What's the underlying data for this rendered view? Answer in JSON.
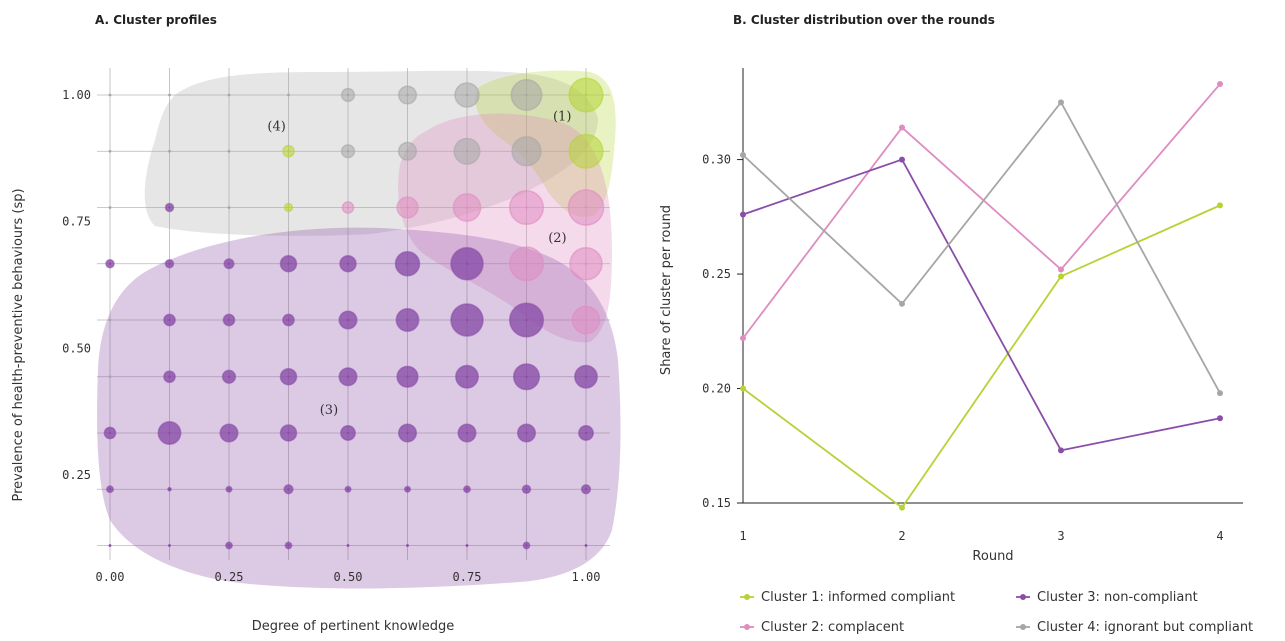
{
  "chart_data": [
    {
      "type": "scatter",
      "title": "A. Cluster profiles",
      "xlabel": "Degree of pertinent knowledge",
      "ylabel": "Prevalence of health-preventive behaviours (sp)",
      "xlim": [
        0,
        1
      ],
      "ylim": [
        0.11,
        1.0
      ],
      "x_ticks": [
        "0.00",
        "0.25",
        "0.50",
        "0.75",
        "1.00"
      ],
      "y_ticks": [
        "0.25",
        "0.50",
        "0.75",
        "1.00"
      ],
      "grid": true,
      "x_grid": [
        0.0,
        0.125,
        0.25,
        0.375,
        0.5,
        0.625,
        0.75,
        0.875,
        1.0
      ],
      "y_grid": [
        0.111,
        0.222,
        0.333,
        0.444,
        0.556,
        0.667,
        0.778,
        0.889,
        1.0
      ],
      "region_labels": [
        {
          "text": "(1)",
          "cluster": 1,
          "x": 0.95,
          "y": 0.96
        },
        {
          "text": "(2)",
          "cluster": 2,
          "x": 0.94,
          "y": 0.72
        },
        {
          "text": "(3)",
          "cluster": 3,
          "x": 0.46,
          "y": 0.38
        },
        {
          "text": "(4)",
          "cluster": 4,
          "x": 0.35,
          "y": 0.94
        }
      ],
      "points": [
        {
          "x": 0.0,
          "y": 1.0,
          "c": 4,
          "s": 0.3
        },
        {
          "x": 0.125,
          "y": 1.0,
          "c": 4,
          "s": 0.3
        },
        {
          "x": 0.25,
          "y": 1.0,
          "c": 4,
          "s": 0.3
        },
        {
          "x": 0.375,
          "y": 1.0,
          "c": 4,
          "s": 0.3
        },
        {
          "x": 0.5,
          "y": 1.0,
          "c": 4,
          "s": 1.6
        },
        {
          "x": 0.625,
          "y": 1.0,
          "c": 4,
          "s": 2.2
        },
        {
          "x": 0.75,
          "y": 1.0,
          "c": 4,
          "s": 3.0
        },
        {
          "x": 0.875,
          "y": 1.0,
          "c": 4,
          "s": 3.8
        },
        {
          "x": 1.0,
          "y": 1.0,
          "c": 1,
          "s": 4.2
        },
        {
          "x": 0.0,
          "y": 0.889,
          "c": 4,
          "s": 0.3
        },
        {
          "x": 0.125,
          "y": 0.889,
          "c": 4,
          "s": 0.3
        },
        {
          "x": 0.25,
          "y": 0.889,
          "c": 4,
          "s": 0.3
        },
        {
          "x": 0.375,
          "y": 0.889,
          "c": 1,
          "s": 1.4
        },
        {
          "x": 0.5,
          "y": 0.889,
          "c": 4,
          "s": 1.6
        },
        {
          "x": 0.625,
          "y": 0.889,
          "c": 4,
          "s": 2.2
        },
        {
          "x": 0.75,
          "y": 0.889,
          "c": 4,
          "s": 3.2
        },
        {
          "x": 0.875,
          "y": 0.889,
          "c": 4,
          "s": 3.6
        },
        {
          "x": 1.0,
          "y": 0.889,
          "c": 1,
          "s": 4.2
        },
        {
          "x": 0.0,
          "y": 0.778,
          "c": 4,
          "s": 0.3
        },
        {
          "x": 0.125,
          "y": 0.778,
          "c": 3,
          "s": 1.0
        },
        {
          "x": 0.25,
          "y": 0.778,
          "c": 4,
          "s": 0.3
        },
        {
          "x": 0.375,
          "y": 0.778,
          "c": 1,
          "s": 1.0
        },
        {
          "x": 0.5,
          "y": 0.778,
          "c": 2,
          "s": 1.4
        },
        {
          "x": 0.625,
          "y": 0.778,
          "c": 2,
          "s": 2.6
        },
        {
          "x": 0.75,
          "y": 0.778,
          "c": 2,
          "s": 3.4
        },
        {
          "x": 0.875,
          "y": 0.778,
          "c": 2,
          "s": 4.2
        },
        {
          "x": 1.0,
          "y": 0.778,
          "c": 2,
          "s": 4.4
        },
        {
          "x": 0.0,
          "y": 0.667,
          "c": 3,
          "s": 1.0
        },
        {
          "x": 0.125,
          "y": 0.667,
          "c": 3,
          "s": 1.0
        },
        {
          "x": 0.25,
          "y": 0.667,
          "c": 3,
          "s": 1.2
        },
        {
          "x": 0.375,
          "y": 0.667,
          "c": 3,
          "s": 2.0
        },
        {
          "x": 0.5,
          "y": 0.667,
          "c": 3,
          "s": 2.0
        },
        {
          "x": 0.625,
          "y": 0.667,
          "c": 3,
          "s": 3.0
        },
        {
          "x": 0.75,
          "y": 0.667,
          "c": 3,
          "s": 4.0
        },
        {
          "x": 0.875,
          "y": 0.667,
          "c": 2,
          "s": 4.2
        },
        {
          "x": 1.0,
          "y": 0.667,
          "c": 2,
          "s": 4.0
        },
        {
          "x": 0.0,
          "y": 0.556,
          "c": 4,
          "s": 0.3
        },
        {
          "x": 0.125,
          "y": 0.556,
          "c": 3,
          "s": 1.4
        },
        {
          "x": 0.25,
          "y": 0.556,
          "c": 3,
          "s": 1.4
        },
        {
          "x": 0.375,
          "y": 0.556,
          "c": 3,
          "s": 1.4
        },
        {
          "x": 0.5,
          "y": 0.556,
          "c": 3,
          "s": 2.2
        },
        {
          "x": 0.625,
          "y": 0.556,
          "c": 3,
          "s": 2.8
        },
        {
          "x": 0.75,
          "y": 0.556,
          "c": 3,
          "s": 4.0
        },
        {
          "x": 0.875,
          "y": 0.556,
          "c": 3,
          "s": 4.2
        },
        {
          "x": 1.0,
          "y": 0.556,
          "c": 2,
          "s": 3.4
        },
        {
          "x": 0.0,
          "y": 0.444,
          "c": 4,
          "s": 0.3
        },
        {
          "x": 0.125,
          "y": 0.444,
          "c": 3,
          "s": 1.4
        },
        {
          "x": 0.25,
          "y": 0.444,
          "c": 3,
          "s": 1.6
        },
        {
          "x": 0.375,
          "y": 0.444,
          "c": 3,
          "s": 2.0
        },
        {
          "x": 0.5,
          "y": 0.444,
          "c": 3,
          "s": 2.2
        },
        {
          "x": 0.625,
          "y": 0.444,
          "c": 3,
          "s": 2.6
        },
        {
          "x": 0.75,
          "y": 0.444,
          "c": 3,
          "s": 2.8
        },
        {
          "x": 0.875,
          "y": 0.444,
          "c": 3,
          "s": 3.2
        },
        {
          "x": 1.0,
          "y": 0.444,
          "c": 3,
          "s": 2.8
        },
        {
          "x": 0.0,
          "y": 0.333,
          "c": 3,
          "s": 1.4
        },
        {
          "x": 0.125,
          "y": 0.333,
          "c": 3,
          "s": 2.8
        },
        {
          "x": 0.25,
          "y": 0.333,
          "c": 3,
          "s": 2.2
        },
        {
          "x": 0.375,
          "y": 0.333,
          "c": 3,
          "s": 2.0
        },
        {
          "x": 0.5,
          "y": 0.333,
          "c": 3,
          "s": 1.8
        },
        {
          "x": 0.625,
          "y": 0.333,
          "c": 3,
          "s": 2.2
        },
        {
          "x": 0.75,
          "y": 0.333,
          "c": 3,
          "s": 2.2
        },
        {
          "x": 0.875,
          "y": 0.333,
          "c": 3,
          "s": 2.2
        },
        {
          "x": 1.0,
          "y": 0.333,
          "c": 3,
          "s": 1.8
        },
        {
          "x": 0.0,
          "y": 0.222,
          "c": 3,
          "s": 0.8
        },
        {
          "x": 0.125,
          "y": 0.222,
          "c": 3,
          "s": 0.4
        },
        {
          "x": 0.25,
          "y": 0.222,
          "c": 3,
          "s": 0.7
        },
        {
          "x": 0.375,
          "y": 0.222,
          "c": 3,
          "s": 1.1
        },
        {
          "x": 0.5,
          "y": 0.222,
          "c": 3,
          "s": 0.7
        },
        {
          "x": 0.625,
          "y": 0.222,
          "c": 3,
          "s": 0.7
        },
        {
          "x": 0.75,
          "y": 0.222,
          "c": 3,
          "s": 0.8
        },
        {
          "x": 0.875,
          "y": 0.222,
          "c": 3,
          "s": 1.0
        },
        {
          "x": 1.0,
          "y": 0.222,
          "c": 3,
          "s": 1.1
        },
        {
          "x": 0.0,
          "y": 0.111,
          "c": 3,
          "s": 0.3
        },
        {
          "x": 0.125,
          "y": 0.111,
          "c": 3,
          "s": 0.3
        },
        {
          "x": 0.25,
          "y": 0.111,
          "c": 3,
          "s": 0.8
        },
        {
          "x": 0.375,
          "y": 0.111,
          "c": 3,
          "s": 0.8
        },
        {
          "x": 0.5,
          "y": 0.111,
          "c": 3,
          "s": 0.3
        },
        {
          "x": 0.625,
          "y": 0.111,
          "c": 3,
          "s": 0.3
        },
        {
          "x": 0.75,
          "y": 0.111,
          "c": 3,
          "s": 0.3
        },
        {
          "x": 0.875,
          "y": 0.111,
          "c": 3,
          "s": 0.8
        },
        {
          "x": 1.0,
          "y": 0.111,
          "c": 3,
          "s": 0.3
        }
      ]
    },
    {
      "type": "line",
      "title": "B. Cluster distribution over the rounds",
      "xlabel": "Round",
      "ylabel": "Share of cluster per round",
      "x": [
        1,
        2,
        3,
        4
      ],
      "ylim": [
        0.15,
        0.34
      ],
      "y_ticks": [
        "0.15",
        "0.20",
        "0.25",
        "0.30"
      ],
      "y_tick_values": [
        0.15,
        0.2,
        0.25,
        0.3
      ],
      "grid": false,
      "legend_position": "bottom",
      "series": [
        {
          "name": "Cluster 1: informed compliant",
          "color": "#b5d334",
          "values": [
            0.2,
            0.148,
            0.249,
            0.28
          ]
        },
        {
          "name": "Cluster 2: complacent",
          "color": "#df8cc1",
          "values": [
            0.222,
            0.314,
            0.252,
            0.333
          ]
        },
        {
          "name": "Cluster 3: non-compliant",
          "color": "#8a4ea8",
          "values": [
            0.276,
            0.3,
            0.173,
            0.187
          ]
        },
        {
          "name": "Cluster 4: ignorant but compliant",
          "color": "#a6a6a6",
          "values": [
            0.302,
            0.237,
            0.325,
            0.198
          ]
        }
      ]
    }
  ],
  "colors": {
    "cluster1": "#b5d334",
    "cluster2": "#df8cc1",
    "cluster3": "#8a4ea8",
    "cluster4": "#a6a6a6"
  }
}
